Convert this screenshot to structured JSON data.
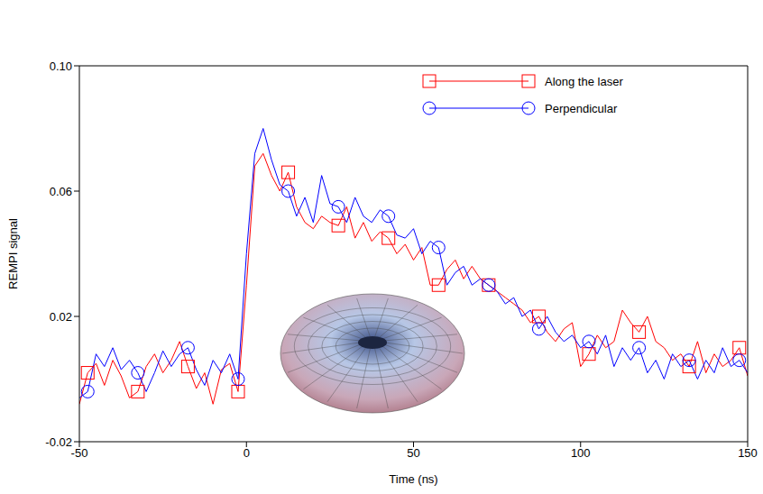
{
  "chart_data": {
    "type": "line",
    "x_label": "Time (ns)",
    "y_label": "REMPI signal",
    "x": [
      -50,
      -47.5,
      -45,
      -42.5,
      -40,
      -37.5,
      -35,
      -32.5,
      -30,
      -27.5,
      -25,
      -22.5,
      -20,
      -17.5,
      -15,
      -12.5,
      -10,
      -7.5,
      -5,
      -2.5,
      0,
      2.5,
      5,
      7.5,
      10,
      12.5,
      15,
      17.5,
      20,
      22.5,
      25,
      27.5,
      30,
      32.5,
      35,
      37.5,
      40,
      42.5,
      45,
      47.5,
      50,
      52.5,
      55,
      57.5,
      60,
      62.5,
      65,
      67.5,
      70,
      72.5,
      75,
      77.5,
      80,
      82.5,
      85,
      87.5,
      90,
      92.5,
      95,
      97.5,
      100,
      102.5,
      105,
      107.5,
      110,
      112.5,
      115,
      117.5,
      120,
      122.5,
      125,
      127.5,
      130,
      132.5,
      135,
      137.5,
      140,
      142.5,
      145,
      147.5,
      150
    ],
    "series": [
      {
        "name": "Along the laser",
        "color": "#ff0000",
        "marker": "square",
        "values": [
          -0.008,
          0.002,
          0.005,
          -0.002,
          0.006,
          0.001,
          -0.006,
          -0.004,
          0.004,
          0.008,
          0.002,
          0.006,
          0.012,
          0.004,
          -0.003,
          0.002,
          -0.008,
          0.003,
          0.005,
          -0.004,
          0.03,
          0.068,
          0.072,
          0.065,
          0.06,
          0.066,
          0.055,
          0.05,
          0.048,
          0.052,
          0.05,
          0.049,
          0.055,
          0.045,
          0.05,
          0.044,
          0.047,
          0.045,
          0.04,
          0.043,
          0.038,
          0.042,
          0.03,
          0.03,
          0.035,
          0.038,
          0.032,
          0.036,
          0.032,
          0.03,
          0.028,
          0.026,
          0.024,
          0.022,
          0.018,
          0.02,
          0.015,
          0.012,
          0.016,
          0.018,
          0.004,
          0.008,
          0.014,
          0.01,
          0.012,
          0.022,
          0.018,
          0.015,
          0.02,
          0.012,
          0.01,
          0.006,
          0.008,
          0.004,
          0.012,
          0.002,
          0.008,
          0.004,
          0.006,
          0.01,
          0.001
        ]
      },
      {
        "name": "Perpendicular",
        "color": "#0000ff",
        "marker": "circle",
        "values": [
          -0.006,
          -0.004,
          0.008,
          0.004,
          0.01,
          0.003,
          0.006,
          0.002,
          -0.004,
          0.002,
          0.009,
          0.004,
          0.008,
          0.01,
          0.003,
          -0.002,
          0.006,
          0.002,
          0.008,
          0.0,
          0.04,
          0.072,
          0.08,
          0.07,
          0.062,
          0.06,
          0.052,
          0.058,
          0.05,
          0.065,
          0.056,
          0.055,
          0.05,
          0.058,
          0.052,
          0.05,
          0.054,
          0.052,
          0.046,
          0.045,
          0.048,
          0.04,
          0.044,
          0.042,
          0.03,
          0.034,
          0.036,
          0.03,
          0.032,
          0.03,
          0.028,
          0.024,
          0.026,
          0.02,
          0.022,
          0.016,
          0.02,
          0.015,
          0.012,
          0.014,
          0.01,
          0.012,
          0.008,
          0.014,
          0.004,
          0.01,
          0.006,
          0.01,
          0.002,
          0.006,
          0.0,
          0.008,
          0.004,
          0.006,
          0.0,
          0.006,
          0.002,
          0.01,
          0.004,
          0.006,
          0.002
        ]
      }
    ],
    "xlim": [
      -50,
      150
    ],
    "xticks": [
      -50,
      0,
      50,
      100,
      150
    ],
    "ylim": [
      -0.02,
      0.1
    ],
    "yticks": [
      -0.02,
      0.02,
      0.06,
      {
        "value": 0.1,
        "label": "0.10"
      }
    ],
    "legend": "upper right",
    "grid": false
  }
}
